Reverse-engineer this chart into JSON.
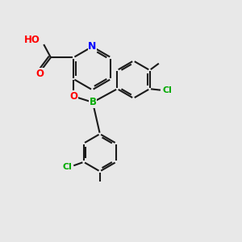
{
  "background_color": "#e8e8e8",
  "bond_color": "#1a1a1a",
  "N_color": "#0000ff",
  "O_color": "#ff0000",
  "B_color": "#00aa00",
  "Cl_color": "#00aa00",
  "line_width": 1.5,
  "font_size": 8.5,
  "figsize": [
    3.0,
    3.0
  ],
  "dpi": 100,
  "xlim": [
    0,
    10
  ],
  "ylim": [
    0,
    10
  ]
}
